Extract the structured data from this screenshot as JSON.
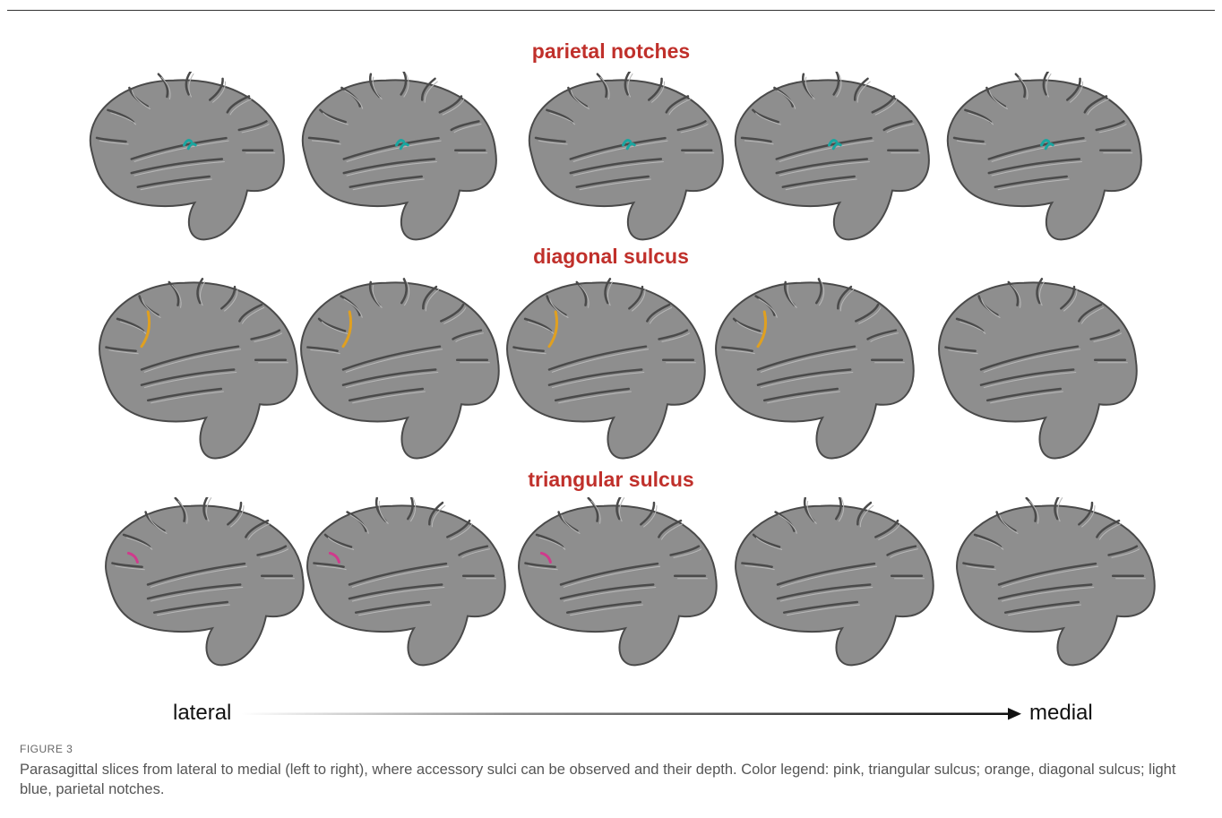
{
  "rows": [
    {
      "title": "parietal notches",
      "marker_type": "notch"
    },
    {
      "title": "diagonal sulcus",
      "marker_type": "diagonal"
    },
    {
      "title": "triangular sulcus",
      "marker_type": "triangular"
    }
  ],
  "colors": {
    "title": "#c0302b",
    "brain_fill": "#8e8e8e",
    "brain_stroke": "#4a4a4a",
    "gyri": "#b8b8b8",
    "notch": "#1aa6a0",
    "diagonal": "#e0a020",
    "triangular": "#d03a8c"
  },
  "axis": {
    "left": "lateral",
    "right": "medial"
  },
  "figure_label": "FIGURE 3",
  "caption": "Parasagittal slices from lateral to medial (left to right), where accessory sulci can be observed and their depth. Color legend: pink, triangular sulcus; orange, diagonal sulcus; light blue, parietal notches."
}
